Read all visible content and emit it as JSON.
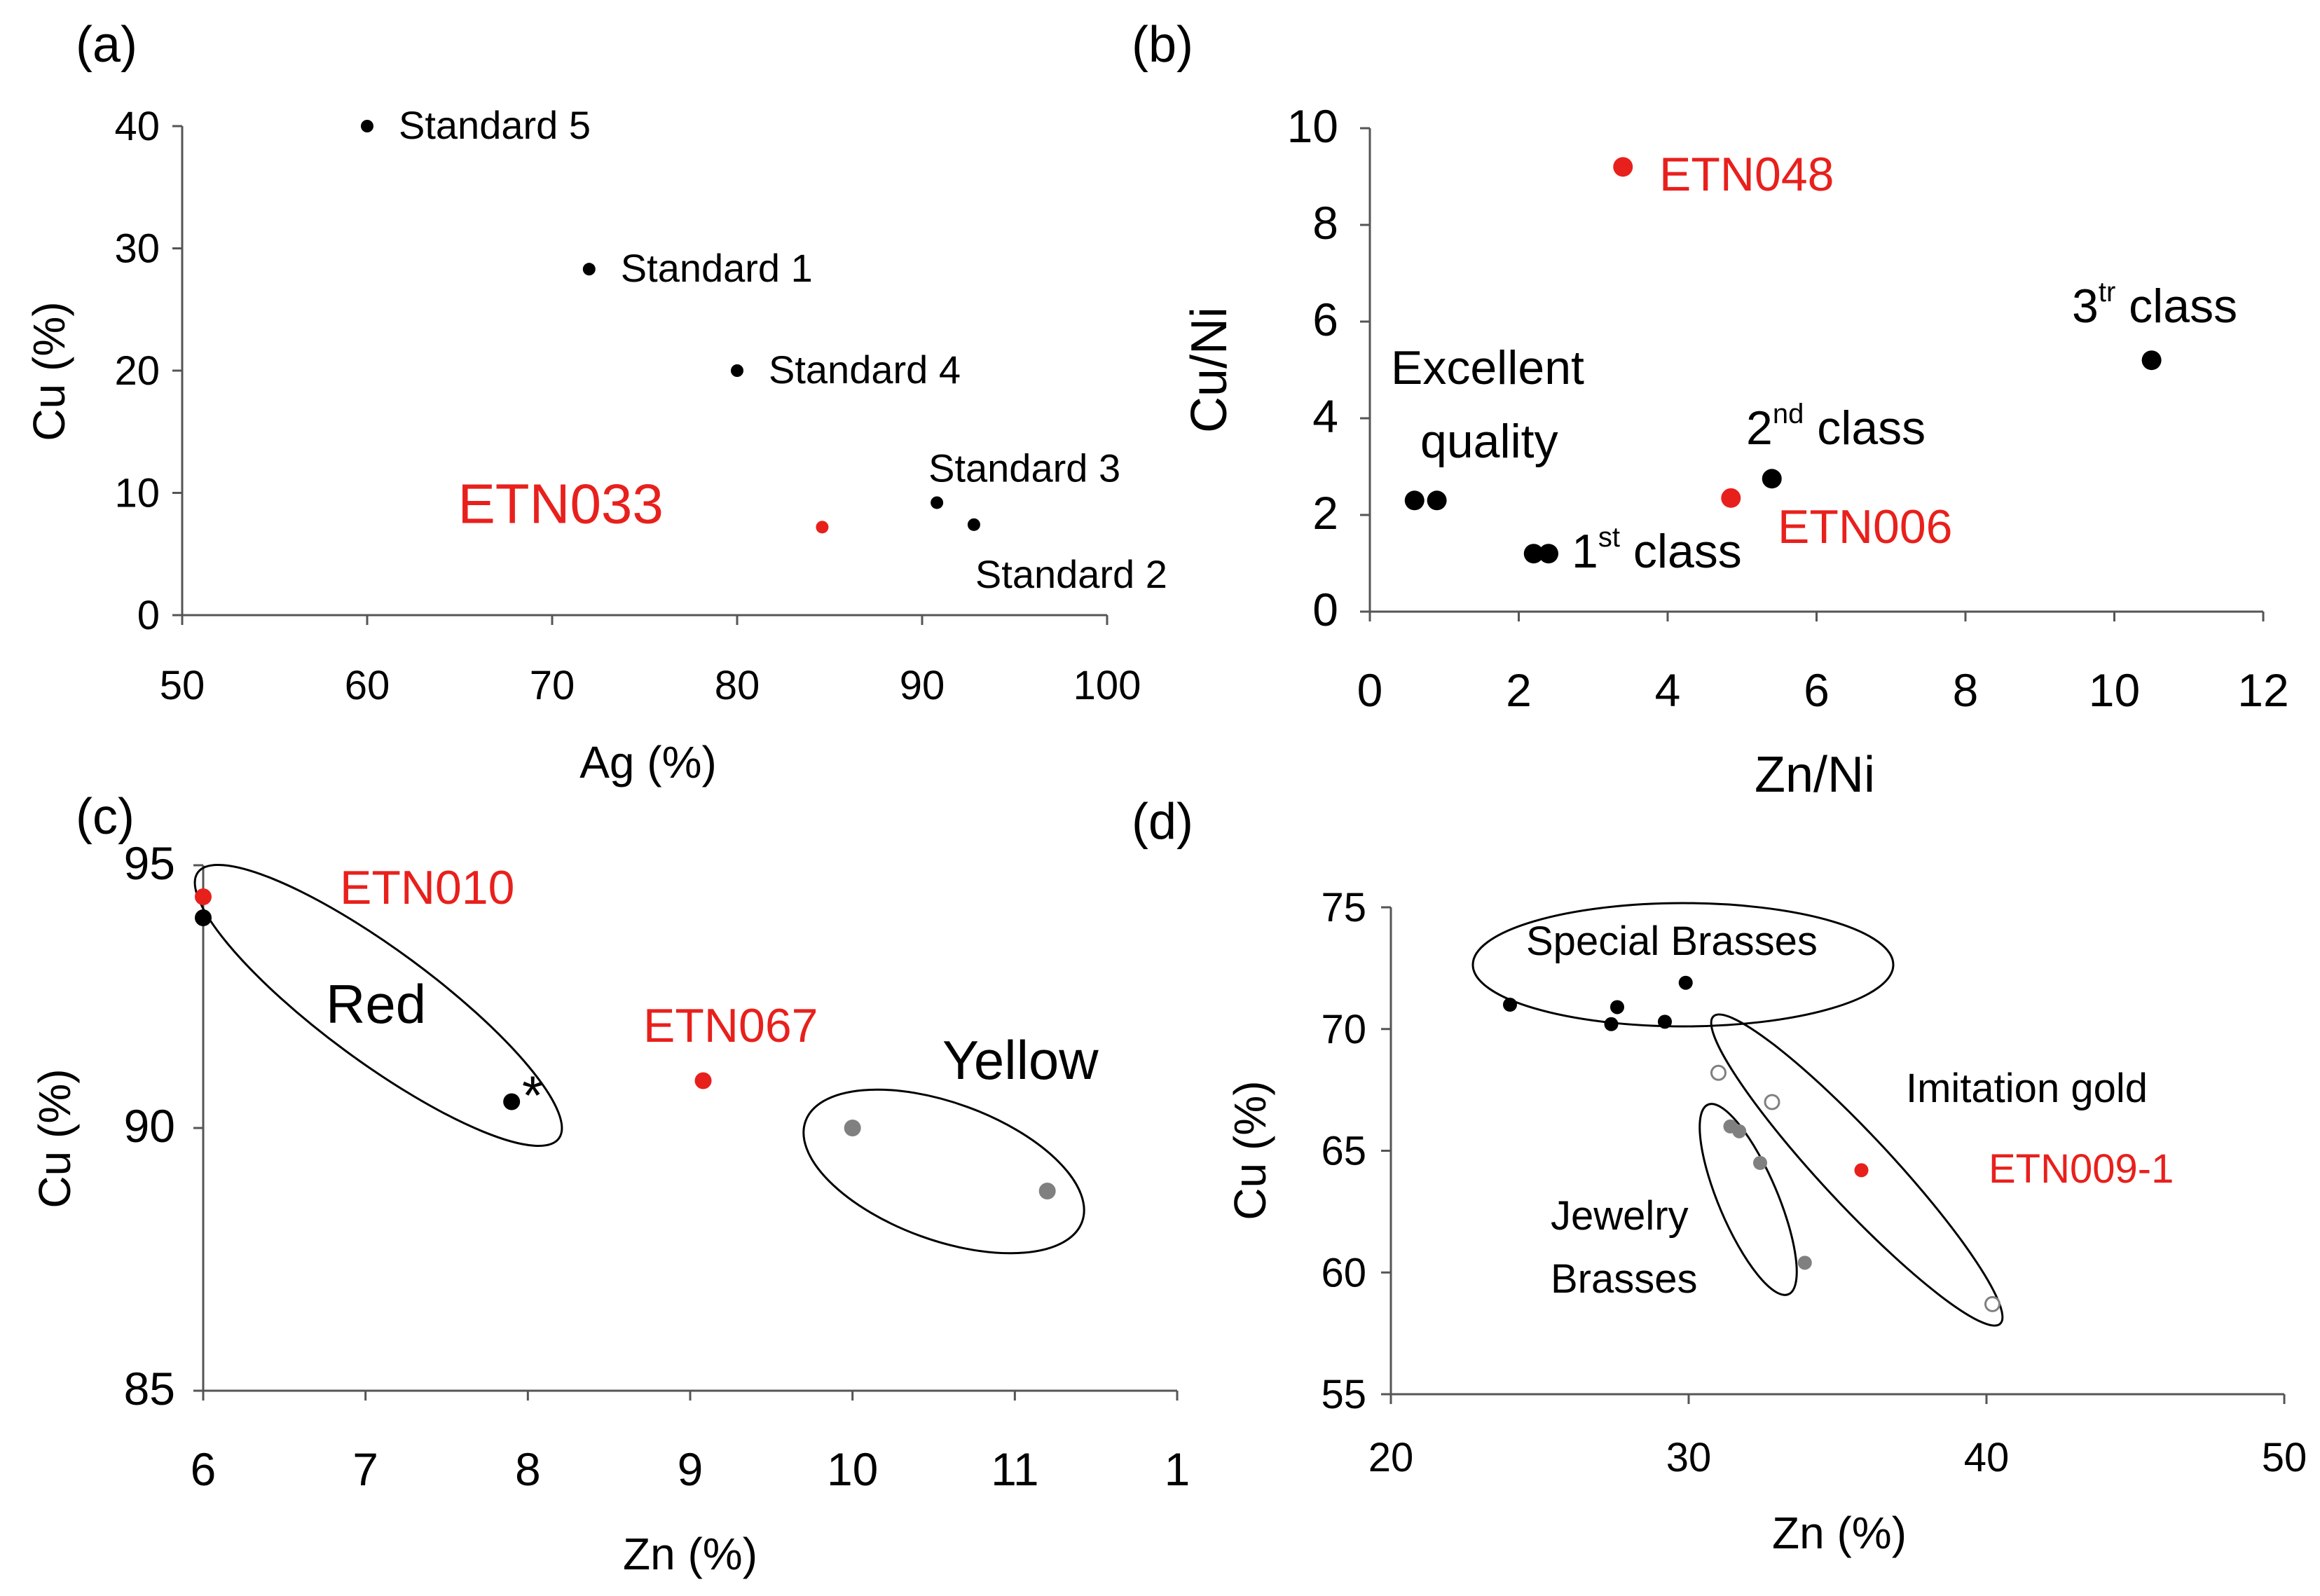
{
  "chart_data": [
    {
      "panel": "(a)",
      "type": "scatter",
      "title": "",
      "xlabel": "Ag (%)",
      "ylabel": "Cu (%)",
      "xlim": [
        50,
        100
      ],
      "ylim": [
        0,
        40
      ],
      "xticks": [
        "50",
        "60",
        "70",
        "80",
        "90",
        "100"
      ],
      "yticks": [
        "0",
        "10",
        "20",
        "30",
        "40"
      ],
      "grid": false,
      "points": [
        {
          "label": "Standard 5",
          "x": 60,
          "y": 40,
          "color": "#000000"
        },
        {
          "label": "Standard 1",
          "x": 72,
          "y": 28.3,
          "color": "#000000"
        },
        {
          "label": "Standard 4",
          "x": 80,
          "y": 20,
          "color": "#000000"
        },
        {
          "label": "Standard 3",
          "x": 90.8,
          "y": 9.2,
          "color": "#000000"
        },
        {
          "label": "Standard 2",
          "x": 92.8,
          "y": 7.4,
          "color": "#000000"
        },
        {
          "label": "ETN033",
          "x": 84.6,
          "y": 7.2,
          "color": "#e8201c"
        }
      ]
    },
    {
      "panel": "(b)",
      "type": "scatter",
      "title": "",
      "xlabel": "Zn/Ni",
      "ylabel": "Cu/Ni",
      "xlim": [
        0,
        12
      ],
      "ylim": [
        0,
        10
      ],
      "xticks": [
        "0",
        "2",
        "4",
        "6",
        "8",
        "10",
        "12"
      ],
      "yticks": [
        "0",
        "2",
        "4",
        "6",
        "8",
        "10"
      ],
      "grid": false,
      "points": [
        {
          "x": 0.6,
          "y": 2.3,
          "color": "#000000"
        },
        {
          "x": 0.9,
          "y": 2.3,
          "color": "#000000"
        },
        {
          "x": 2.2,
          "y": 1.2,
          "color": "#000000"
        },
        {
          "x": 2.4,
          "y": 1.2,
          "color": "#000000"
        },
        {
          "x": 5.4,
          "y": 2.75,
          "color": "#000000"
        },
        {
          "x": 10.5,
          "y": 5.2,
          "color": "#000000"
        },
        {
          "x": 3.4,
          "y": 9.2,
          "color": "#e8201c"
        },
        {
          "x": 4.85,
          "y": 2.35,
          "color": "#e8201c"
        }
      ],
      "annotations": {
        "excellent_line1": "Excellent",
        "excellent_line2": "quality",
        "first_num": "1",
        "first_sup": "st",
        "first_rest": " class",
        "second_num": "2",
        "second_sup": "nd",
        "second_rest": " class",
        "third_num": "3",
        "third_sup": "tr",
        "third_rest": " class",
        "etn048": "ETN048",
        "etn006": "ETN006"
      }
    },
    {
      "panel": "(c)",
      "type": "scatter",
      "title": "",
      "xlabel": "Zn (%)",
      "ylabel": "Cu (%)",
      "xlim": [
        6,
        12
      ],
      "ylim": [
        85,
        95
      ],
      "xticks": [
        "6",
        "7",
        "8",
        "9",
        "10",
        "11",
        "1"
      ],
      "yticks": [
        "85",
        "90",
        "95"
      ],
      "grid": false,
      "points": [
        {
          "x": 6.0,
          "y": 94.0,
          "color": "#000000"
        },
        {
          "x": 6.0,
          "y": 94.4,
          "color": "#e8201c"
        },
        {
          "x": 7.9,
          "y": 90.5,
          "color": "#000000"
        },
        {
          "x": 9.08,
          "y": 90.9,
          "color": "#e8201c"
        },
        {
          "x": 10.0,
          "y": 90.0,
          "color": "#808080"
        },
        {
          "x": 11.2,
          "y": 88.8,
          "color": "#808080"
        }
      ],
      "annotations": {
        "etn010": "ETN010",
        "etn067": "ETN067",
        "red": "Red",
        "yellow": "Yellow",
        "asterisk": "*"
      }
    },
    {
      "panel": "(d)",
      "type": "scatter",
      "title": "",
      "xlabel": "Zn (%)",
      "ylabel": "Cu (%)",
      "xlim": [
        20,
        50
      ],
      "ylim": [
        55,
        75
      ],
      "xticks": [
        "20",
        "30",
        "40",
        "50"
      ],
      "yticks": [
        "55",
        "60",
        "65",
        "70",
        "75"
      ],
      "grid": false,
      "points": [
        {
          "x": 24.0,
          "y": 71.0,
          "color": "#000000",
          "fill": "solid"
        },
        {
          "x": 27.4,
          "y": 70.2,
          "color": "#000000",
          "fill": "solid"
        },
        {
          "x": 27.6,
          "y": 70.9,
          "color": "#000000",
          "fill": "solid"
        },
        {
          "x": 29.2,
          "y": 70.3,
          "color": "#000000",
          "fill": "solid"
        },
        {
          "x": 29.9,
          "y": 71.9,
          "color": "#000000",
          "fill": "solid"
        },
        {
          "x": 31.0,
          "y": 68.2,
          "color": "#808080",
          "fill": "open"
        },
        {
          "x": 32.8,
          "y": 67.0,
          "color": "#808080",
          "fill": "open"
        },
        {
          "x": 40.2,
          "y": 58.7,
          "color": "#808080",
          "fill": "open"
        },
        {
          "x": 31.4,
          "y": 66.0,
          "color": "#808080",
          "fill": "solid"
        },
        {
          "x": 31.7,
          "y": 65.8,
          "color": "#808080",
          "fill": "solid"
        },
        {
          "x": 32.4,
          "y": 64.5,
          "color": "#808080",
          "fill": "solid"
        },
        {
          "x": 33.9,
          "y": 60.4,
          "color": "#808080",
          "fill": "solid"
        },
        {
          "x": 35.8,
          "y": 64.2,
          "color": "#e8201c",
          "fill": "solid"
        }
      ],
      "annotations": {
        "special_brasses": "Special Brasses",
        "imitation_gold": "Imitation gold",
        "etn009": "ETN009-1",
        "jewelry_line1": "Jewelry",
        "jewelry_line2": "Brasses"
      }
    }
  ],
  "colors": {
    "red": "#e8201c",
    "black": "#000000",
    "gray": "#808080",
    "axis": "#555555"
  }
}
